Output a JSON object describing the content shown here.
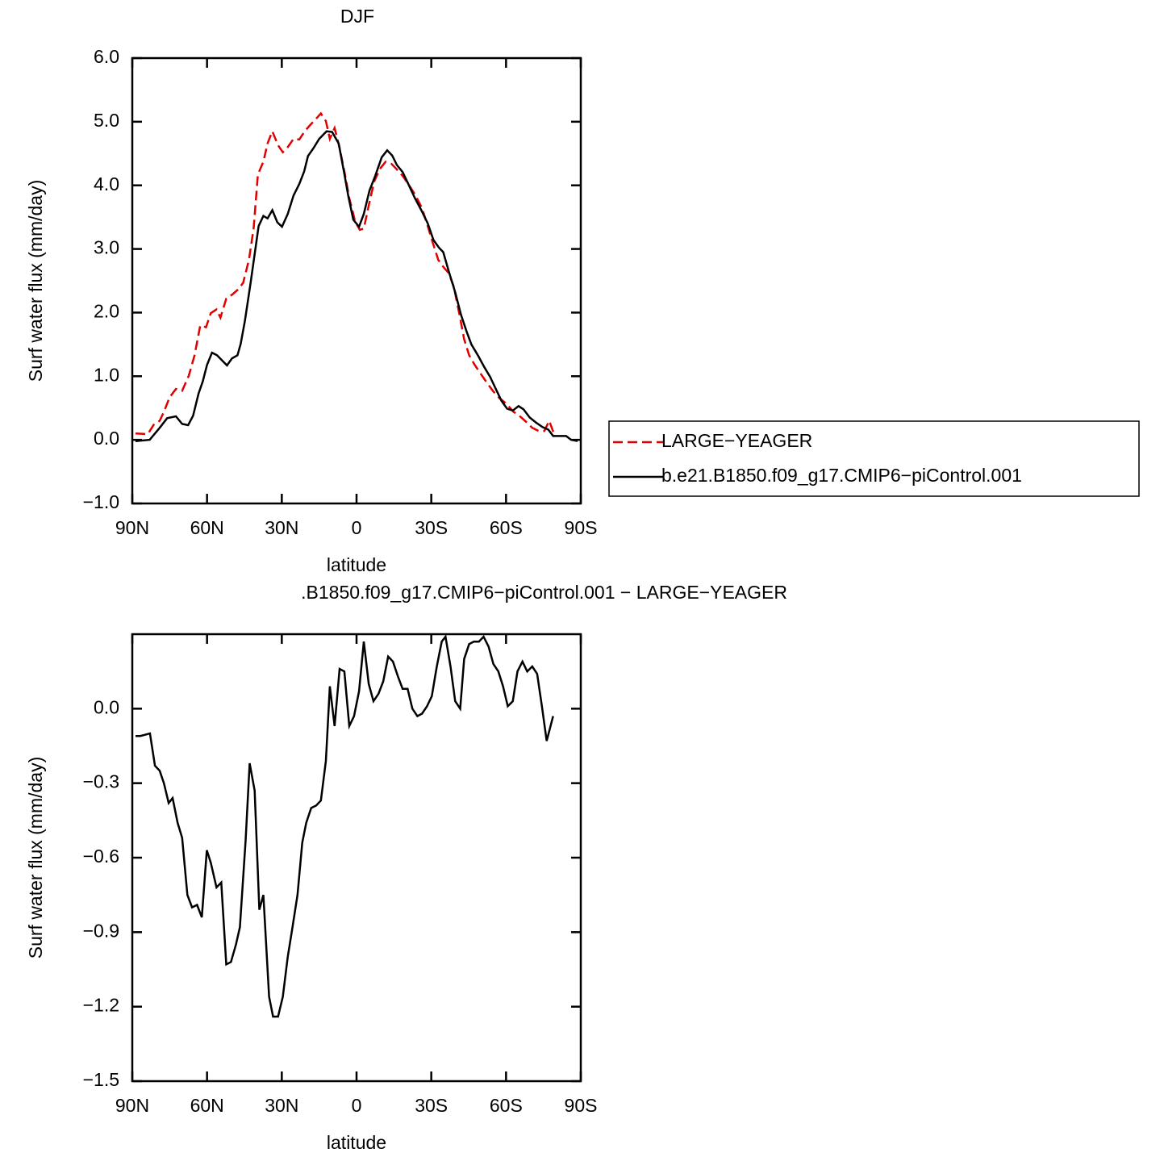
{
  "chart_data": [
    {
      "type": "line",
      "title": "DJF",
      "xlabel": "latitude",
      "ylabel": "Surf water flux (mm/day)",
      "xlim": [
        90,
        -90
      ],
      "xticks": [
        {
          "value": 90,
          "label": "90N"
        },
        {
          "value": 60,
          "label": "60N"
        },
        {
          "value": 30,
          "label": "30N"
        },
        0,
        {
          "value": -30,
          "label": "30S"
        },
        {
          "value": -60,
          "label": "60S"
        },
        {
          "value": -90,
          "label": "90S"
        }
      ],
      "ylim": [
        -1,
        6
      ],
      "yticks": [
        {
          "value": -1,
          "label": "−1.0"
        },
        {
          "value": 0,
          "label": "0.0"
        },
        {
          "value": 1,
          "label": "1.0"
        },
        {
          "value": 2,
          "label": "2.0"
        },
        {
          "value": 3,
          "label": "3.0"
        },
        {
          "value": 4,
          "label": "4.0"
        },
        {
          "value": 5,
          "label": "5.0"
        },
        {
          "value": 6,
          "label": "6.0"
        }
      ],
      "legend": "right",
      "series": [
        {
          "name": "LARGE−YEAGER",
          "color": "#e00000",
          "dash": true,
          "x": [
            88.7,
            83.8,
            81.2,
            79,
            77.3,
            75,
            72.5,
            70,
            67.3,
            65,
            62.7,
            60.4,
            58.5,
            56.2,
            54.6,
            52.3,
            49.7,
            47.4,
            45.5,
            43.2,
            41.3,
            39.6,
            37.4,
            35.7,
            33.8,
            31.5,
            29.6,
            27.6,
            25.3,
            23,
            20.8,
            18.8,
            16.6,
            14.3,
            12.3,
            10.7,
            8.8,
            6.8,
            4.9,
            2.9,
            0.6,
            -1.3,
            -2.9,
            -5.2,
            -7.1,
            -9.4,
            -11.7,
            -14,
            -16.2,
            -18.5,
            -21.1,
            -23.7,
            -26.3,
            -28.6,
            -30.5,
            -32.8,
            -34.8,
            -37,
            -39,
            -41.3,
            -43.2,
            -45.2,
            -47.4,
            -50,
            -52.3,
            -54.9,
            -57.5,
            -60.1,
            -63,
            -65.3,
            -67.9,
            -70.5,
            -73.1,
            -75.4,
            -77.3,
            -79.3
          ],
          "values": [
            0.1,
            0.09,
            0.25,
            0.3,
            0.44,
            0.67,
            0.8,
            0.77,
            1.01,
            1.33,
            1.8,
            1.77,
            1.99,
            2.05,
            1.92,
            2.22,
            2.29,
            2.37,
            2.47,
            2.83,
            3.32,
            4.17,
            4.37,
            4.66,
            4.85,
            4.63,
            4.52,
            4.6,
            4.73,
            4.72,
            4.85,
            4.94,
            5.03,
            5.13,
            5.01,
            4.73,
            4.9,
            4.59,
            4.22,
            3.8,
            3.44,
            3.3,
            3.32,
            3.74,
            4.06,
            4.26,
            4.37,
            4.34,
            4.25,
            4.15,
            4,
            3.84,
            3.64,
            3.36,
            3.11,
            2.83,
            2.72,
            2.62,
            2.41,
            1.97,
            1.58,
            1.33,
            1.18,
            1.03,
            0.9,
            0.76,
            0.65,
            0.57,
            0.44,
            0.38,
            0.29,
            0.19,
            0.14,
            0.14,
            0.3,
            0.09
          ]
        },
        {
          "name": "b.e21.B1850.f09_g17.CMIP6−piControl.001",
          "color": "#000000",
          "dash": false,
          "x": [
            88.7,
            83,
            79,
            76,
            72.5,
            70,
            67.6,
            65.6,
            63.4,
            61.7,
            60,
            58,
            56,
            52,
            50,
            47.8,
            46.5,
            44.8,
            42.5,
            39.3,
            37.4,
            35.7,
            33.8,
            31.8,
            29.9,
            27.6,
            25.3,
            23,
            21,
            19.5,
            17.2,
            15,
            12,
            9.8,
            7.2,
            4.9,
            3.3,
            1.3,
            -1,
            -2.9,
            -5.2,
            -7.5,
            -10.1,
            -12.3,
            -14.3,
            -16.2,
            -18.5,
            -20.8,
            -23.4,
            -26,
            -28.6,
            -30.9,
            -33.1,
            -34.8,
            -37,
            -39.6,
            -41.9,
            -44.2,
            -46.1,
            -48.7,
            -51.3,
            -53.6,
            -55.9,
            -58.2,
            -60.4,
            -62.7,
            -65,
            -67,
            -69.5,
            -72.1,
            -74.7,
            -77,
            -78.9,
            -81.5,
            -84.1,
            -86.1,
            -88.7
          ],
          "values": [
            -0.02,
            0,
            0.19,
            0.34,
            0.37,
            0.25,
            0.23,
            0.38,
            0.73,
            0.92,
            1.18,
            1.37,
            1.33,
            1.17,
            1.28,
            1.33,
            1.51,
            1.87,
            2.47,
            3.36,
            3.52,
            3.48,
            3.61,
            3.42,
            3.35,
            3.55,
            3.84,
            4.02,
            4.22,
            4.46,
            4.59,
            4.73,
            4.85,
            4.84,
            4.66,
            4.18,
            3.83,
            3.46,
            3.35,
            3.55,
            3.92,
            4.15,
            4.44,
            4.55,
            4.47,
            4.32,
            4.21,
            4.02,
            3.8,
            3.61,
            3.4,
            3.14,
            3.02,
            2.95,
            2.65,
            2.32,
            1.97,
            1.7,
            1.5,
            1.33,
            1.14,
            0.99,
            0.8,
            0.61,
            0.49,
            0.46,
            0.53,
            0.48,
            0.35,
            0.27,
            0.2,
            0.16,
            0.06,
            0.06,
            0.06,
            0,
            -0.02
          ]
        }
      ]
    },
    {
      "type": "line",
      "title": ".B1850.f09_g17.CMIP6−piControl.001 − LARGE−YEAGER",
      "xlabel": "latitude",
      "ylabel": "Surf water flux (mm/day)",
      "xlim": [
        90,
        -90
      ],
      "xticks": [
        {
          "value": 90,
          "label": "90N"
        },
        {
          "value": 60,
          "label": "60N"
        },
        {
          "value": 30,
          "label": "30N"
        },
        0,
        {
          "value": -30,
          "label": "30S"
        },
        {
          "value": -60,
          "label": "60S"
        },
        {
          "value": -90,
          "label": "90S"
        }
      ],
      "ylim": [
        -1.5,
        0.3
      ],
      "yticks": [
        {
          "value": -1.5,
          "label": "−1.5"
        },
        {
          "value": -1.2,
          "label": "−1.2"
        },
        {
          "value": -0.9,
          "label": "−0.9"
        },
        {
          "value": -0.6,
          "label": "−0.6"
        },
        {
          "value": -0.3,
          "label": "−0.3"
        },
        {
          "value": 0,
          "label": "0.0"
        }
      ],
      "series": [
        {
          "color": "#000000",
          "dash": false,
          "x": [
            88.7,
            86.8,
            82.9,
            80.9,
            79,
            77.3,
            75.4,
            73.8,
            71.8,
            70,
            67.9,
            66,
            64,
            62.1,
            60.1,
            58.5,
            56.2,
            54.3,
            52.3,
            50.4,
            48.4,
            46.8,
            44.5,
            42.9,
            40.9,
            39,
            37.4,
            35.1,
            33.5,
            31.5,
            29.6,
            27.6,
            25.7,
            23.7,
            21.8,
            20.2,
            18.2,
            16.2,
            14.3,
            12.3,
            10.7,
            8.8,
            6.8,
            4.9,
            2.9,
            1,
            -1,
            -2.9,
            -4.9,
            -6.8,
            -8.8,
            -10.7,
            -12.7,
            -14.6,
            -16.6,
            -18.5,
            -20.5,
            -22.4,
            -24.4,
            -26.3,
            -28.3,
            -30.2,
            -32.2,
            -34.2,
            -35.7,
            -37.7,
            -39.6,
            -41.6,
            -43.2,
            -45.2,
            -47.1,
            -49.1,
            -51,
            -53,
            -54.9,
            -56.9,
            -58.8,
            -60.7,
            -62.7,
            -64.6,
            -66.6,
            -68.5,
            -70.5,
            -72.5,
            -74.4,
            -76.3,
            -78.9
          ],
          "values": [
            -0.11,
            -0.11,
            -0.1,
            -0.23,
            -0.25,
            -0.3,
            -0.38,
            -0.36,
            -0.46,
            -0.52,
            -0.75,
            -0.8,
            -0.79,
            -0.84,
            -0.57,
            -0.62,
            -0.72,
            -0.7,
            -1.03,
            -1.02,
            -0.95,
            -0.88,
            -0.53,
            -0.22,
            -0.33,
            -0.81,
            -0.75,
            -1.16,
            -1.24,
            -1.24,
            -1.16,
            -1,
            -0.88,
            -0.75,
            -0.54,
            -0.46,
            -0.4,
            -0.39,
            -0.37,
            -0.21,
            0.09,
            -0.07,
            0.16,
            0.15,
            -0.07,
            -0.03,
            0.07,
            0.27,
            0.1,
            0.03,
            0.06,
            0.11,
            0.21,
            0.19,
            0.13,
            0.08,
            0.08,
            0,
            -0.03,
            -0.02,
            0.01,
            0.05,
            0.17,
            0.27,
            0.29,
            0.17,
            0.03,
            0,
            0.2,
            0.26,
            0.27,
            0.27,
            0.29,
            0.25,
            0.18,
            0.15,
            0.09,
            0.01,
            0.03,
            0.15,
            0.19,
            0.15,
            0.17,
            0.14,
            0.01,
            -0.13,
            -0.03
          ]
        }
      ]
    }
  ]
}
